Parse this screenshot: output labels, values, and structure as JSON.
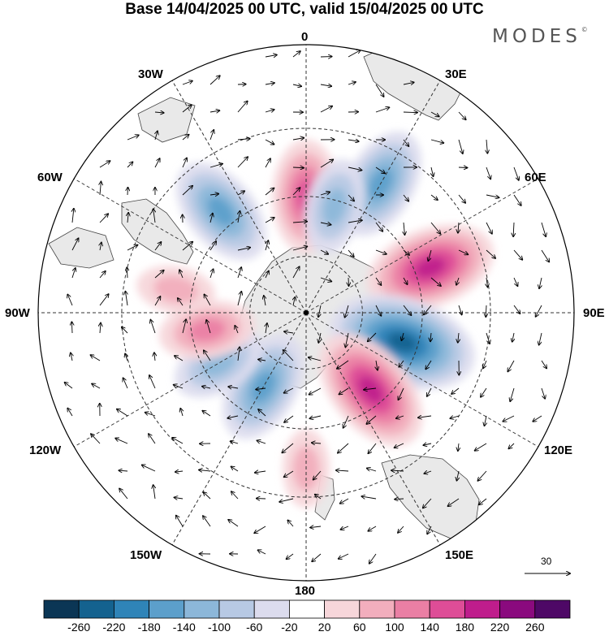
{
  "title": "Base 14/04/2025 00 UTC, valid 15/04/2025 00 UTC",
  "brand": "MODES",
  "brand_mark": "©",
  "longitude_labels": {
    "top": "0",
    "e30": "30E",
    "e60": "60E",
    "e90": "90E",
    "e120": "120E",
    "e150": "150E",
    "bottom": "180",
    "w150": "150W",
    "w120": "120W",
    "w90": "90W",
    "w60": "60W",
    "w30": "30W"
  },
  "reference_vector": {
    "label": "30",
    "icon": "arrow-right-icon"
  },
  "colorbar": {
    "ticks": [
      "-260",
      "-220",
      "-180",
      "-140",
      "-100",
      "-60",
      "-20",
      "20",
      "60",
      "100",
      "140",
      "180",
      "220",
      "260"
    ],
    "colors": [
      "#0b3655",
      "#14628f",
      "#2f84b8",
      "#5c9fcb",
      "#8cb7d9",
      "#b7c9e4",
      "#dcdcee",
      "#ffffff",
      "#f7d6da",
      "#f2aebd",
      "#ea7fa4",
      "#de4d97",
      "#bf1d8c",
      "#8a0a7e",
      "#4e0866"
    ]
  },
  "map_style": {
    "projection": "south-polar-stereographic",
    "land_color": "#e9e9e9",
    "coast_color": "#444444",
    "grid_style": "dashed"
  },
  "anomaly_centers": [
    {
      "sign": "positive",
      "level": 140,
      "lon": 0,
      "lat": -50
    },
    {
      "sign": "negative",
      "level": -140,
      "lon": 30,
      "lat": -40
    },
    {
      "sign": "negative",
      "level": -100,
      "lon": 15,
      "lat": -52
    },
    {
      "sign": "negative",
      "level": -140,
      "lon": -40,
      "lat": -45
    },
    {
      "sign": "positive",
      "level": 180,
      "lon": 70,
      "lat": -45
    },
    {
      "sign": "negative",
      "level": -220,
      "lon": 107,
      "lat": -55
    },
    {
      "sign": "positive",
      "level": 180,
      "lon": 140,
      "lat": -55
    },
    {
      "sign": "negative",
      "level": -140,
      "lon": -150,
      "lat": -60
    },
    {
      "sign": "negative",
      "level": -100,
      "lon": -120,
      "lat": -55
    },
    {
      "sign": "positive",
      "level": 100,
      "lon": -100,
      "lat": -55
    },
    {
      "sign": "positive",
      "level": 60,
      "lon": 180,
      "lat": -38
    },
    {
      "sign": "positive",
      "level": 60,
      "lon": -80,
      "lat": -45
    }
  ]
}
